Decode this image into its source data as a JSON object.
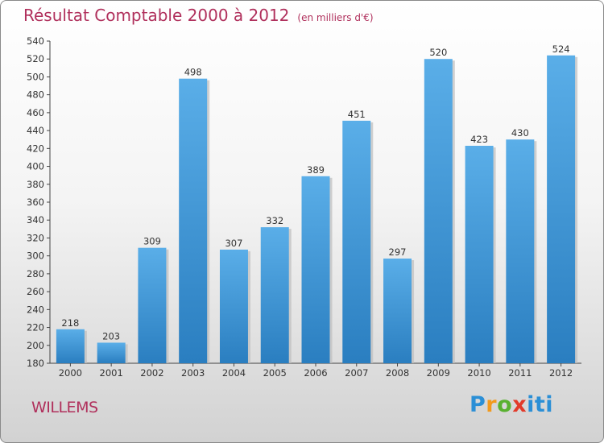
{
  "chart_data": {
    "type": "bar",
    "title": "Résultat Comptable 2000 à 2012",
    "subtitle": "(en milliers d'€)",
    "categories": [
      "2000",
      "2001",
      "2002",
      "2003",
      "2004",
      "2005",
      "2006",
      "2007",
      "2008",
      "2009",
      "2010",
      "2011",
      "2012"
    ],
    "values": [
      218,
      203,
      309,
      498,
      307,
      332,
      389,
      451,
      297,
      520,
      423,
      430,
      524
    ],
    "ylim": [
      180,
      540
    ],
    "ytick_step": 20,
    "grid": false,
    "xlabel": "",
    "ylabel": ""
  },
  "footer": {
    "commune": "WILLEMS",
    "logo": "Proxiti"
  },
  "colors": {
    "title": "#b0305c",
    "bar_top": "#5aaee8",
    "bar_bottom": "#2a7ec0",
    "bar_shadow": "#bdbdbd"
  }
}
